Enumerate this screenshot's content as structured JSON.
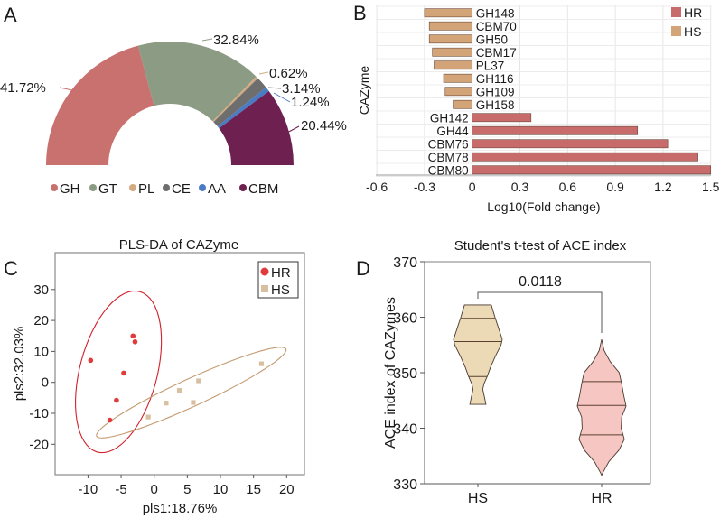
{
  "colors": {
    "GH": "#c8716f",
    "GT": "#8c9b83",
    "PL": "#d4aa80",
    "CE": "#6e6e6e",
    "AA": "#4a7cc4",
    "CBM": "#6e2150",
    "B_HR": "#c86b6b",
    "B_HS": "#d2a478",
    "C_HR": "#e03a3a",
    "C_HR_ellipse": "#d0202a",
    "C_HS": "#d8bfa0",
    "C_HS_ellipse": "#c49a70",
    "D_HS": "#ecd9b5",
    "D_HR": "#f6c6c2"
  },
  "panel_letters": [
    "A",
    "B",
    "C",
    "D"
  ],
  "chart_data": [
    {
      "panel": "A",
      "type": "pie",
      "shape": "half-donut",
      "categories": [
        "GH",
        "GT",
        "PL",
        "CE",
        "AA",
        "CBM"
      ],
      "values": [
        41.72,
        32.84,
        0.62,
        3.14,
        1.24,
        20.44
      ],
      "labels": [
        "41.72%",
        "32.84%",
        "0.62%",
        "3.14%",
        "1.24%",
        "20.44%"
      ],
      "legend": "bottom"
    },
    {
      "panel": "B",
      "type": "bar",
      "orientation": "horizontal",
      "categories": [
        "GH148",
        "CBM70",
        "GH50",
        "CBM17",
        "PL37",
        "GH116",
        "GH109",
        "GH158",
        "GH142",
        "GH44",
        "CBM76",
        "CBM78",
        "CBM80"
      ],
      "values": [
        -0.3,
        -0.27,
        -0.27,
        -0.25,
        -0.24,
        -0.18,
        -0.17,
        -0.12,
        0.37,
        1.04,
        1.23,
        1.42,
        1.5
      ],
      "groups": [
        "HS",
        "HS",
        "HS",
        "HS",
        "HS",
        "HS",
        "HS",
        "HS",
        "HR",
        "HR",
        "HR",
        "HR",
        "HR"
      ],
      "series_names": [
        "HR",
        "HS"
      ],
      "xlabel": "Log10(Fold change)",
      "ylabel": "CAZyme",
      "xlim": [
        -0.6,
        1.5
      ],
      "xticks": [
        "-0.6",
        "-0.3",
        "0",
        "0.3",
        "0.6",
        "0.9",
        "1.2",
        "1.5"
      ],
      "grid": true,
      "legend": "top-right"
    },
    {
      "panel": "C",
      "type": "scatter",
      "title": "PLS-DA of CAZyme",
      "xlabel": "pls1:18.76%",
      "ylabel": "pls2:32.03%",
      "xlim": [
        -15,
        22
      ],
      "ylim": [
        -30,
        38
      ],
      "xticks": [
        "-10",
        "-5",
        "0",
        "5",
        "10",
        "15",
        "20"
      ],
      "yticks": [
        "30",
        "20",
        "10",
        "0",
        "-10",
        "-20"
      ],
      "legend": "top-right",
      "series": [
        {
          "name": "HR",
          "marker": "circle",
          "x": [
            -9.6,
            -3.2,
            -2.9,
            -4.6,
            -5.7,
            -6.7
          ],
          "y": [
            7.1,
            15.0,
            13.1,
            3.0,
            -5.8,
            -12.2
          ],
          "ellipse": {
            "center": [
              -5.4,
              3.4
            ],
            "axis1": [
              2.7,
              26.1
            ],
            "axis2": [
              5.9,
              -1.0
            ]
          }
        },
        {
          "name": "HS",
          "marker": "square",
          "x": [
            -0.9,
            1.8,
            3.8,
            5.9,
            6.7,
            16.2
          ],
          "y": [
            -11.2,
            -6.7,
            -2.6,
            -6.5,
            0.5,
            6.0
          ],
          "ellipse": {
            "center": [
              5.6,
              -3.3
            ],
            "axis1": [
              14.3,
              14.1
            ],
            "axis2": [
              -0.9,
              4.0
            ]
          }
        }
      ]
    },
    {
      "panel": "D",
      "type": "violin",
      "title": "Student's t-test of ACE index",
      "ylabel": "ACE index of CAZymes",
      "categories": [
        "HS",
        "HR"
      ],
      "ylim": [
        330,
        370
      ],
      "yticks": [
        "330",
        "340",
        "350",
        "360",
        "370"
      ],
      "p_value": "0.0118",
      "series": [
        {
          "name": "HS",
          "quartiles": [
            349.3,
            355.6,
            359.8
          ],
          "profile": [
            [
              344.3,
              0.33
            ],
            [
              346,
              0.25
            ],
            [
              347,
              0.2
            ],
            [
              348,
              0.25
            ],
            [
              349.3,
              0.38
            ],
            [
              351,
              0.52
            ],
            [
              353,
              0.72
            ],
            [
              355,
              0.95
            ],
            [
              356,
              1.0
            ],
            [
              358,
              0.85
            ],
            [
              360,
              0.7
            ],
            [
              362.2,
              0.55
            ]
          ]
        },
        {
          "name": "HR",
          "quartiles": [
            338.8,
            344.1,
            348.4
          ],
          "profile": [
            [
              331.5,
              0
            ],
            [
              332,
              0.05
            ],
            [
              334,
              0.3
            ],
            [
              336,
              0.7
            ],
            [
              338,
              0.93
            ],
            [
              340,
              0.8
            ],
            [
              342,
              0.82
            ],
            [
              344,
              1.0
            ],
            [
              346,
              0.9
            ],
            [
              348,
              0.82
            ],
            [
              350,
              0.72
            ],
            [
              352,
              0.35
            ],
            [
              354,
              0.1
            ],
            [
              356,
              0
            ]
          ]
        }
      ]
    }
  ]
}
